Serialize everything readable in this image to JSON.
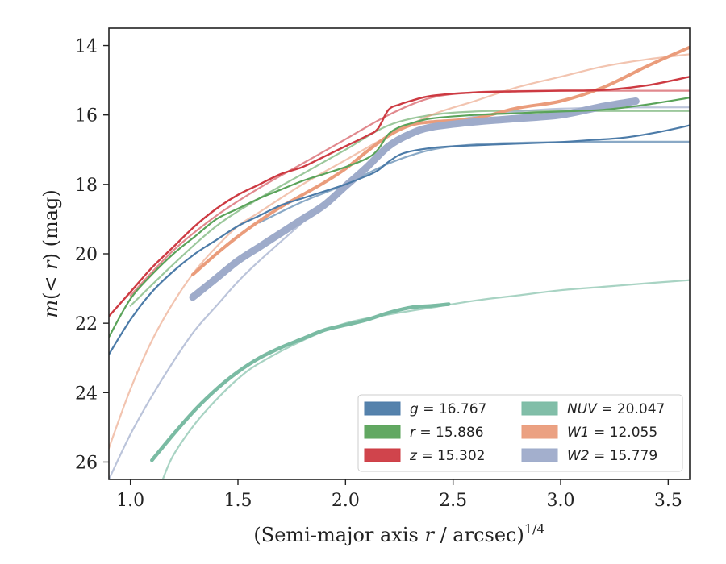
{
  "chart_data": {
    "type": "line",
    "xlabel_main": "(Semi-major axis ",
    "xlabel_var": "r",
    "xlabel_rest": " / arcsec)",
    "xlabel_sup": "1/4",
    "ylabel_m": "m",
    "ylabel_lt": "(< ",
    "ylabel_r": "r",
    "ylabel_rest": ") (mag)",
    "xlim": [
      0.9,
      3.6
    ],
    "ylim": [
      26.5,
      13.5
    ],
    "y_inverted": true,
    "x_ticks": [
      "1.0",
      "1.5",
      "2.0",
      "2.5",
      "3.0",
      "3.5"
    ],
    "y_ticks": [
      "14",
      "16",
      "18",
      "20",
      "22",
      "24",
      "26"
    ],
    "legend_position": "lower right",
    "legend": [
      {
        "band": "g",
        "value": "= 16.767",
        "color": "#4c7ba8"
      },
      {
        "band": "r",
        "value": "= 15.886",
        "color": "#5aa35a"
      },
      {
        "band": "z",
        "value": "= 15.302",
        "color": "#cd3a42"
      },
      {
        "band": "NUV",
        "value": "= 20.047",
        "color": "#7abba3"
      },
      {
        "band": "W1",
        "value": "= 12.055",
        "color": "#ea9c7b"
      },
      {
        "band": "W2",
        "value": "= 15.779",
        "color": "#9eabca"
      }
    ],
    "series": [
      {
        "name": "g",
        "color": "#4c7ba8",
        "kind": "data",
        "width": 2.2,
        "x": [
          0.9,
          1.0,
          1.1,
          1.2,
          1.3,
          1.4,
          1.5,
          1.6,
          1.7,
          1.8,
          1.9,
          2.0,
          2.1,
          2.15,
          2.2,
          2.25,
          2.3,
          2.4,
          2.5,
          2.7,
          3.0,
          3.15,
          3.3,
          3.45,
          3.6
        ],
        "y": [
          22.9,
          21.9,
          21.1,
          20.5,
          20.0,
          19.6,
          19.2,
          18.9,
          18.6,
          18.4,
          18.2,
          18.0,
          17.75,
          17.6,
          17.35,
          17.15,
          17.05,
          16.95,
          16.9,
          16.85,
          16.78,
          16.72,
          16.65,
          16.5,
          16.3
        ]
      },
      {
        "name": "g model",
        "color": "#4c7ba8",
        "kind": "model",
        "width": 2.2,
        "opacity": 0.65,
        "x": [
          1.6,
          1.8,
          2.0,
          2.2,
          2.4,
          2.6,
          2.8,
          3.0,
          3.2,
          3.4,
          3.6
        ],
        "y": [
          19.1,
          18.5,
          18.0,
          17.4,
          17.0,
          16.85,
          16.8,
          16.78,
          16.77,
          16.77,
          16.77
        ]
      },
      {
        "name": "r",
        "color": "#5aa35a",
        "kind": "data",
        "width": 2.2,
        "x": [
          0.9,
          1.0,
          1.1,
          1.2,
          1.3,
          1.4,
          1.5,
          1.6,
          1.7,
          1.8,
          1.9,
          2.0,
          2.1,
          2.15,
          2.2,
          2.25,
          2.3,
          2.4,
          2.6,
          2.8,
          3.0,
          3.2,
          3.4,
          3.6
        ],
        "y": [
          22.4,
          21.3,
          20.6,
          20.0,
          19.5,
          19.0,
          18.7,
          18.4,
          18.15,
          17.9,
          17.7,
          17.5,
          17.25,
          17.0,
          16.55,
          16.35,
          16.25,
          16.1,
          16.0,
          15.95,
          15.9,
          15.85,
          15.7,
          15.5
        ]
      },
      {
        "name": "r model",
        "color": "#5aa35a",
        "kind": "model",
        "width": 2.2,
        "opacity": 0.6,
        "x": [
          1.0,
          1.2,
          1.4,
          1.6,
          1.8,
          2.0,
          2.2,
          2.4,
          2.6,
          2.8,
          3.0,
          3.3,
          3.6
        ],
        "y": [
          21.5,
          20.3,
          19.2,
          18.4,
          17.7,
          17.0,
          16.3,
          16.0,
          15.9,
          15.88,
          15.887,
          15.886,
          15.886
        ]
      },
      {
        "name": "z",
        "color": "#cd3a42",
        "kind": "data",
        "width": 2.4,
        "x": [
          0.9,
          1.0,
          1.1,
          1.2,
          1.3,
          1.4,
          1.5,
          1.6,
          1.7,
          1.8,
          1.9,
          2.0,
          2.1,
          2.15,
          2.2,
          2.25,
          2.3,
          2.4,
          2.6,
          2.8,
          3.0,
          3.2,
          3.4,
          3.6
        ],
        "y": [
          21.8,
          21.1,
          20.4,
          19.8,
          19.2,
          18.7,
          18.3,
          18.0,
          17.7,
          17.5,
          17.2,
          16.9,
          16.6,
          16.4,
          15.85,
          15.7,
          15.6,
          15.45,
          15.35,
          15.32,
          15.3,
          15.28,
          15.15,
          14.9
        ]
      },
      {
        "name": "z model",
        "color": "#cd3a42",
        "kind": "model",
        "width": 2.2,
        "opacity": 0.6,
        "x": [
          1.0,
          1.2,
          1.4,
          1.6,
          1.8,
          2.0,
          2.2,
          2.4,
          2.6,
          2.8,
          3.0,
          3.3,
          3.6
        ],
        "y": [
          21.2,
          19.9,
          18.9,
          18.1,
          17.4,
          16.7,
          16.0,
          15.5,
          15.35,
          15.31,
          15.303,
          15.302,
          15.302
        ]
      },
      {
        "name": "NUV",
        "color": "#7abba3",
        "kind": "band",
        "width": 4.5,
        "x": [
          1.1,
          1.2,
          1.3,
          1.4,
          1.5,
          1.6,
          1.7,
          1.8,
          1.9,
          2.0,
          2.1,
          2.2,
          2.3,
          2.4,
          2.48
        ],
        "y": [
          25.95,
          25.2,
          24.5,
          23.9,
          23.4,
          23.0,
          22.7,
          22.45,
          22.2,
          22.05,
          21.9,
          21.7,
          21.55,
          21.5,
          21.45
        ]
      },
      {
        "name": "NUV model",
        "color": "#7abba3",
        "kind": "model",
        "width": 2.2,
        "opacity": 0.65,
        "x": [
          1.15,
          1.2,
          1.3,
          1.4,
          1.5,
          1.6,
          1.8,
          2.0,
          2.2,
          2.4,
          2.6,
          2.8,
          3.0,
          3.2,
          3.4,
          3.6
        ],
        "y": [
          26.5,
          25.8,
          24.9,
          24.2,
          23.6,
          23.15,
          22.5,
          22.0,
          21.75,
          21.55,
          21.35,
          21.2,
          21.05,
          20.95,
          20.85,
          20.76
        ]
      },
      {
        "name": "W1",
        "color": "#ea9c7b",
        "kind": "band",
        "width": 4.0,
        "x": [
          1.29,
          1.4,
          1.5,
          1.6,
          1.7,
          1.8,
          1.9,
          2.0,
          2.1,
          2.2,
          2.3,
          2.4,
          2.6,
          2.8,
          3.0,
          3.2,
          3.4,
          3.6
        ],
        "y": [
          20.6,
          20.0,
          19.5,
          19.05,
          18.65,
          18.3,
          17.95,
          17.55,
          17.05,
          16.6,
          16.3,
          16.2,
          16.1,
          15.8,
          15.6,
          15.2,
          14.6,
          14.05
        ]
      },
      {
        "name": "W1 model",
        "color": "#ea9c7b",
        "kind": "model",
        "width": 2.2,
        "opacity": 0.6,
        "x": [
          0.9,
          1.0,
          1.1,
          1.2,
          1.3,
          1.4,
          1.5,
          1.6,
          1.8,
          2.0,
          2.2,
          2.4,
          2.6,
          2.8,
          3.0,
          3.2,
          3.4,
          3.6
        ],
        "y": [
          25.6,
          23.9,
          22.5,
          21.4,
          20.5,
          19.8,
          19.2,
          18.8,
          18.0,
          17.3,
          16.6,
          16.0,
          15.6,
          15.2,
          14.9,
          14.6,
          14.4,
          14.25
        ]
      },
      {
        "name": "W2",
        "color": "#9eabca",
        "kind": "band",
        "width": 9.0,
        "x": [
          1.29,
          1.4,
          1.5,
          1.6,
          1.7,
          1.8,
          1.9,
          2.0,
          2.1,
          2.2,
          2.3,
          2.4,
          2.6,
          2.8,
          3.0,
          3.2,
          3.35
        ],
        "y": [
          21.25,
          20.7,
          20.2,
          19.8,
          19.4,
          19.0,
          18.6,
          18.05,
          17.5,
          16.9,
          16.55,
          16.35,
          16.2,
          16.1,
          16.0,
          15.75,
          15.6
        ]
      },
      {
        "name": "W2 model",
        "color": "#9eabca",
        "kind": "model",
        "width": 2.2,
        "opacity": 0.7,
        "x": [
          0.9,
          1.0,
          1.1,
          1.2,
          1.3,
          1.4,
          1.5,
          1.6,
          1.8,
          2.0,
          2.2,
          2.4,
          2.6,
          2.8,
          3.0,
          3.3,
          3.6
        ],
        "y": [
          26.5,
          25.2,
          24.1,
          23.1,
          22.2,
          21.5,
          20.8,
          20.2,
          19.1,
          18.0,
          16.95,
          16.35,
          16.05,
          15.9,
          15.82,
          15.785,
          15.78
        ]
      }
    ]
  }
}
